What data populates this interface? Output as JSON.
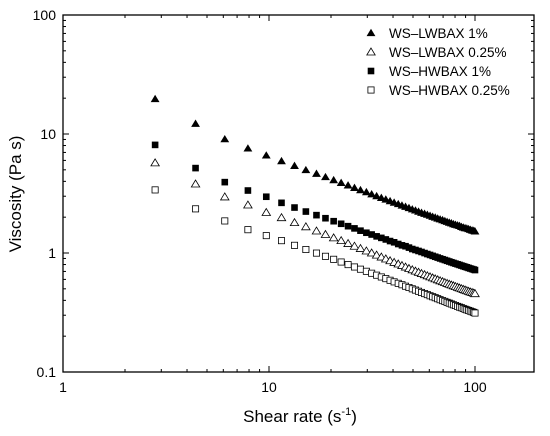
{
  "chart_data": {
    "type": "scatter",
    "xlabel": "Shear rate (s",
    "xlabel_sup": "-1",
    "xlabel_end": ")",
    "ylabel": "Viscosity (Pa s)",
    "xscale": "log",
    "yscale": "log",
    "xlim": [
      1,
      200
    ],
    "ylim": [
      0.1,
      100
    ],
    "x_ticks": [
      {
        "value": 1,
        "label": "1"
      },
      {
        "value": 10,
        "label": "10"
      },
      {
        "value": 100,
        "label": "100"
      }
    ],
    "y_ticks": [
      {
        "value": 0.1,
        "label": "0.1"
      },
      {
        "value": 1,
        "label": "1"
      },
      {
        "value": 10,
        "label": "10"
      },
      {
        "value": 100,
        "label": "100"
      }
    ],
    "grid": false,
    "legend_position": "top-right",
    "series": [
      {
        "name": "WS–LWBAX 1%",
        "marker": "triangle-filled",
        "x": [
          2.8,
          4.4,
          6.1,
          7.9,
          9.7,
          11.5,
          13.3,
          15.1,
          17.0,
          18.8,
          20.6,
          22.4,
          24.2,
          26.0,
          27.8,
          29.7,
          31.5,
          33.3,
          35.1,
          36.9,
          38.7,
          40.5,
          42.4,
          44.2,
          46.0,
          47.8,
          49.6,
          51.4,
          53.2,
          55.0,
          56.9,
          58.7,
          60.5,
          62.3,
          64.1,
          65.9,
          67.7,
          69.6,
          71.4,
          73.2,
          75.0,
          76.8,
          78.6,
          80.4,
          82.3,
          84.1,
          85.9,
          87.7,
          89.5,
          91.3,
          93.1,
          94.9,
          96.8,
          98.6,
          100.0
        ],
        "y": [
          19.7,
          12.2,
          9.05,
          7.57,
          6.61,
          5.92,
          5.4,
          4.98,
          4.64,
          4.35,
          4.1,
          3.89,
          3.7,
          3.53,
          3.38,
          3.25,
          3.12,
          3.01,
          2.91,
          2.82,
          2.73,
          2.65,
          2.58,
          2.51,
          2.45,
          2.39,
          2.33,
          2.28,
          2.23,
          2.18,
          2.14,
          2.1,
          2.06,
          2.02,
          1.99,
          1.95,
          1.92,
          1.89,
          1.86,
          1.83,
          1.8,
          1.78,
          1.75,
          1.73,
          1.71,
          1.69,
          1.66,
          1.64,
          1.62,
          1.61,
          1.59,
          1.57,
          1.55,
          1.54,
          1.52
        ]
      },
      {
        "name": "WS–LWBAX 0.25%",
        "marker": "triangle-open",
        "x": [
          2.8,
          4.4,
          6.1,
          7.9,
          9.7,
          11.5,
          13.3,
          15.1,
          17.0,
          18.8,
          20.6,
          22.4,
          24.2,
          26.0,
          27.8,
          29.7,
          31.5,
          33.3,
          35.1,
          36.9,
          38.7,
          40.5,
          42.4,
          44.2,
          46.0,
          47.8,
          49.6,
          51.4,
          53.2,
          55.0,
          56.9,
          58.7,
          60.5,
          62.3,
          64.1,
          65.9,
          67.7,
          69.6,
          71.4,
          73.2,
          75.0,
          76.8,
          78.6,
          80.4,
          82.3,
          84.1,
          85.9,
          87.7,
          89.5,
          91.3,
          93.1,
          94.9,
          96.8,
          98.6,
          100.0
        ],
        "y": [
          5.72,
          3.8,
          2.96,
          2.53,
          2.19,
          1.98,
          1.8,
          1.66,
          1.53,
          1.43,
          1.34,
          1.27,
          1.2,
          1.14,
          1.09,
          1.04,
          1.0,
          0.96,
          0.924,
          0.891,
          0.861,
          0.833,
          0.808,
          0.784,
          0.762,
          0.741,
          0.722,
          0.704,
          0.688,
          0.672,
          0.657,
          0.643,
          0.63,
          0.618,
          0.606,
          0.595,
          0.584,
          0.574,
          0.564,
          0.555,
          0.546,
          0.538,
          0.53,
          0.522,
          0.515,
          0.508,
          0.501,
          0.494,
          0.488,
          0.482,
          0.476,
          0.47,
          0.465,
          0.46,
          0.455
        ]
      },
      {
        "name": "WS–HWBAX 1%",
        "marker": "square-filled",
        "x": [
          2.8,
          4.4,
          6.1,
          7.9,
          9.7,
          11.5,
          13.3,
          15.1,
          17.0,
          18.8,
          20.6,
          22.4,
          24.2,
          26.0,
          27.8,
          29.7,
          31.5,
          33.3,
          35.1,
          36.9,
          38.7,
          40.5,
          42.4,
          44.2,
          46.0,
          47.8,
          49.6,
          51.4,
          53.2,
          55.0,
          56.9,
          58.7,
          60.5,
          62.3,
          64.1,
          65.9,
          67.7,
          69.6,
          71.4,
          73.2,
          75.0,
          76.8,
          78.6,
          80.4,
          82.3,
          84.1,
          85.9,
          87.7,
          89.5,
          91.3,
          93.1,
          94.9,
          96.8,
          98.6,
          100.0
        ],
        "y": [
          8.1,
          5.17,
          3.94,
          3.35,
          2.97,
          2.64,
          2.41,
          2.23,
          2.08,
          1.96,
          1.85,
          1.76,
          1.68,
          1.61,
          1.54,
          1.48,
          1.43,
          1.38,
          1.34,
          1.3,
          1.26,
          1.23,
          1.19,
          1.16,
          1.14,
          1.11,
          1.08,
          1.06,
          1.04,
          1.02,
          0.999,
          0.98,
          0.963,
          0.946,
          0.93,
          0.915,
          0.9,
          0.886,
          0.873,
          0.86,
          0.848,
          0.836,
          0.825,
          0.814,
          0.804,
          0.794,
          0.784,
          0.775,
          0.766,
          0.758,
          0.749,
          0.741,
          0.733,
          0.726,
          0.719
        ]
      },
      {
        "name": "WS–HWBAX 0.25%",
        "marker": "square-open",
        "x": [
          2.8,
          4.4,
          6.1,
          7.9,
          9.7,
          11.5,
          13.3,
          15.1,
          17.0,
          18.8,
          20.6,
          22.4,
          24.2,
          26.0,
          27.8,
          29.7,
          31.5,
          33.3,
          35.1,
          36.9,
          38.7,
          40.5,
          42.4,
          44.2,
          46.0,
          47.8,
          49.6,
          51.4,
          53.2,
          55.0,
          56.9,
          58.7,
          60.5,
          62.3,
          64.1,
          65.9,
          67.7,
          69.6,
          71.4,
          73.2,
          75.0,
          76.8,
          78.6,
          80.4,
          82.3,
          84.1,
          85.9,
          87.7,
          89.5,
          91.3,
          93.1,
          94.9,
          96.8,
          98.6,
          100.0
        ],
        "y": [
          3.39,
          2.35,
          1.86,
          1.57,
          1.4,
          1.27,
          1.16,
          1.07,
          0.998,
          0.938,
          0.885,
          0.84,
          0.799,
          0.763,
          0.731,
          0.702,
          0.676,
          0.651,
          0.629,
          0.609,
          0.59,
          0.572,
          0.556,
          0.541,
          0.526,
          0.513,
          0.5,
          0.488,
          0.477,
          0.466,
          0.456,
          0.447,
          0.437,
          0.429,
          0.421,
          0.413,
          0.405,
          0.398,
          0.392,
          0.385,
          0.379,
          0.373,
          0.367,
          0.362,
          0.356,
          0.351,
          0.347,
          0.342,
          0.337,
          0.333,
          0.329,
          0.325,
          0.321,
          0.317,
          0.313
        ]
      }
    ]
  }
}
